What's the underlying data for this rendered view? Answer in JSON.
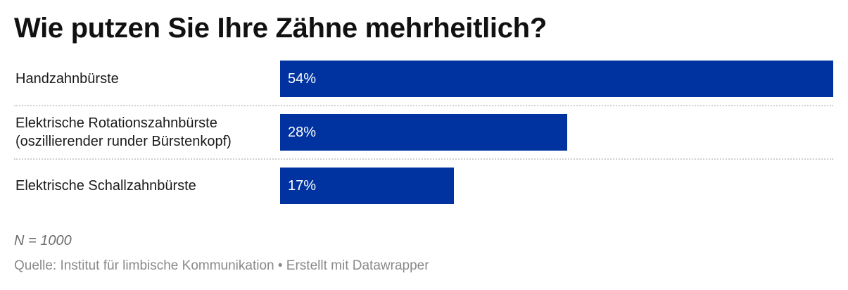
{
  "title": "Wie putzen Sie Ihre Zähne mehrheitlich?",
  "chart_data": {
    "type": "bar",
    "orientation": "horizontal",
    "title": "Wie putzen Sie Ihre Zähne mehrheitlich?",
    "categories": [
      "Handzahnbürste",
      "Elektrische Rotationszahnbürste\n(oszillierender runder Bürstenkopf)",
      "Elektrische Schallzahnbürste"
    ],
    "values": [
      54,
      28,
      17
    ],
    "value_labels": [
      "54%",
      "28%",
      "17%"
    ],
    "unit": "%",
    "xlim": [
      0,
      54
    ],
    "bar_color": "#0033a0",
    "grid": false
  },
  "footer": {
    "note": "N = 1000",
    "source": "Quelle: Institut für limbische Kommunikation • Erstellt mit Datawrapper"
  }
}
